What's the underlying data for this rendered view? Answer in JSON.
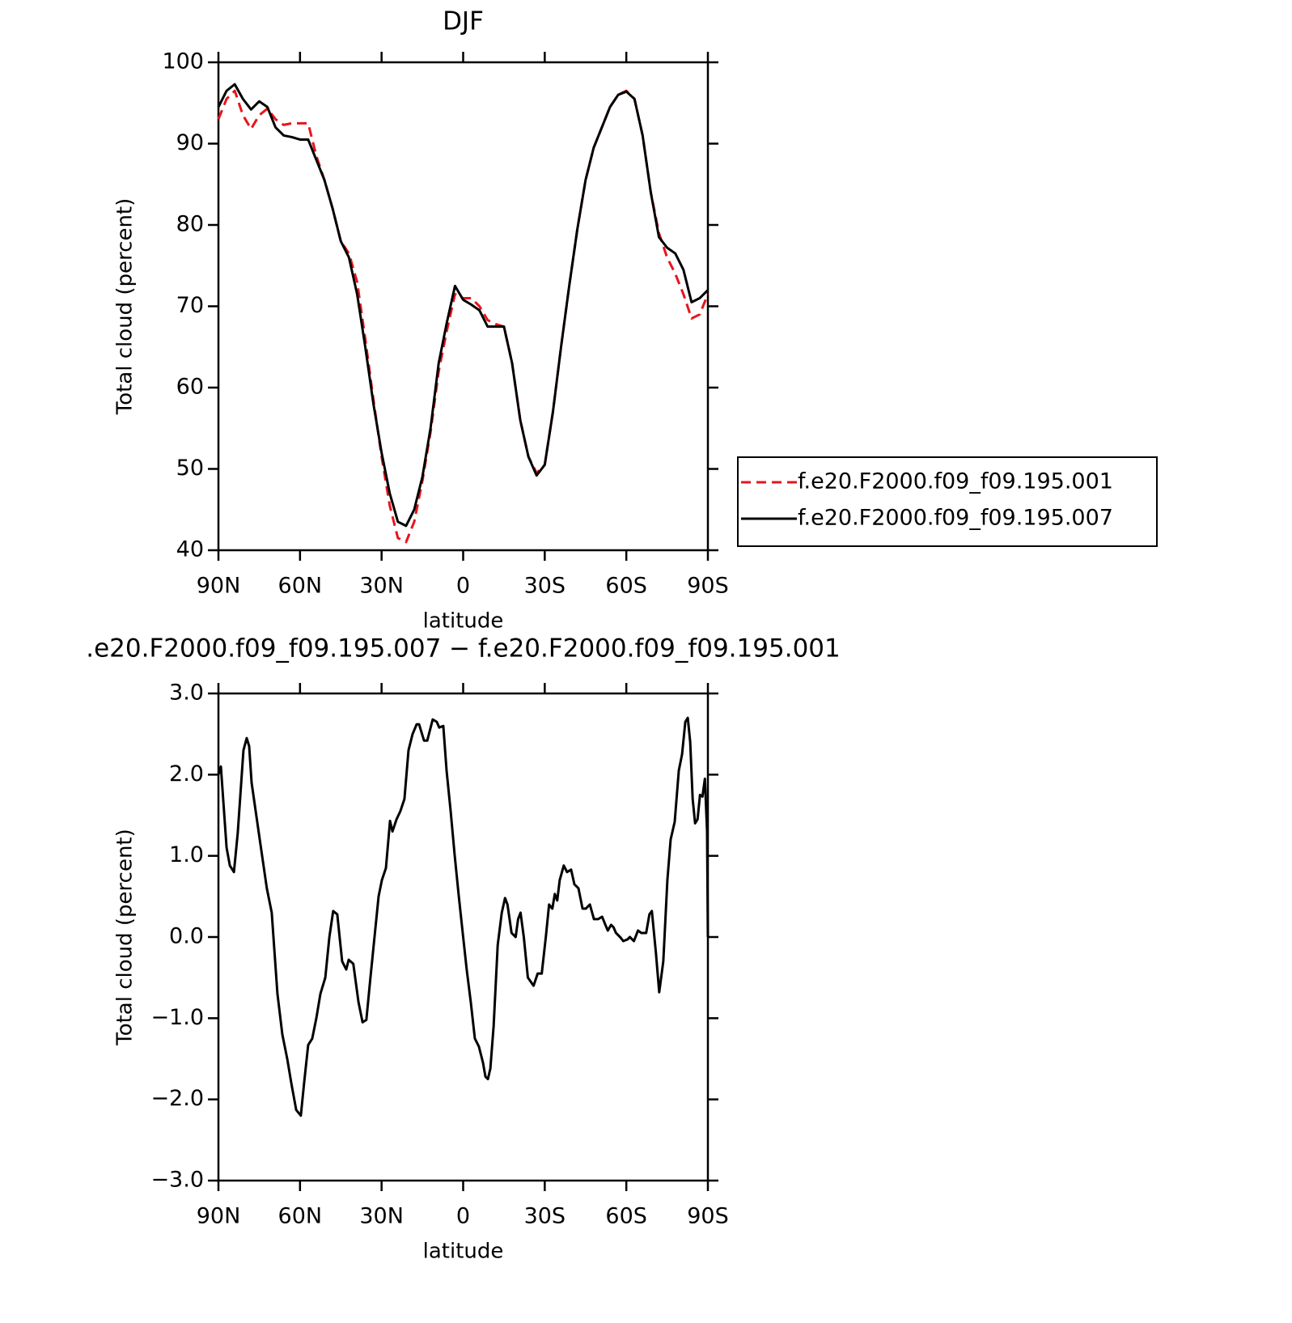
{
  "chart_data": [
    {
      "type": "line",
      "title": "DJF",
      "x_label": "latitude",
      "y_label": "Total cloud (percent)",
      "x": [
        90,
        87,
        84,
        81,
        78,
        75,
        72,
        69,
        66,
        63,
        60,
        57,
        54,
        51,
        48,
        45,
        42,
        39,
        36,
        33,
        30,
        27,
        24,
        21,
        18,
        15,
        12,
        9,
        6,
        3,
        0,
        -3,
        -6,
        -9,
        -12,
        -15,
        -18,
        -21,
        -24,
        -27,
        -30,
        -33,
        -36,
        -39,
        -42,
        -45,
        -48,
        -51,
        -54,
        -57,
        -60,
        -63,
        -66,
        -69,
        -72,
        -75,
        -78,
        -81,
        -84,
        -87,
        -90
      ],
      "series": [
        {
          "name": "f.e20.F2000.f09_f09.195.001",
          "color": "#e8141b",
          "dashed": true,
          "values": [
            93,
            95.5,
            96.5,
            93.5,
            91.8,
            93.5,
            94.3,
            93,
            92.3,
            92.5,
            92.5,
            92.5,
            88.5,
            85.5,
            82,
            78,
            76.5,
            73,
            66,
            58.5,
            51.5,
            45.5,
            41.5,
            41,
            43.5,
            48.5,
            54.5,
            62,
            67,
            71.5,
            71,
            71,
            70,
            68.3,
            67.8,
            67.5,
            63,
            56,
            51.5,
            49.5,
            50.5,
            57,
            65,
            72.5,
            79.5,
            85.5,
            89.5,
            92,
            94.5,
            96,
            96.5,
            95.5,
            91,
            84,
            79,
            76,
            74,
            71.5,
            68.5,
            69,
            71.5
          ]
        },
        {
          "name": "f.e20.F2000.f09_f09.195.007",
          "color": "#000000",
          "dashed": false,
          "values": [
            94.5,
            96.5,
            97.3,
            95.5,
            94.2,
            95.2,
            94.5,
            92,
            91,
            90.8,
            90.5,
            90.5,
            88,
            85.5,
            82,
            78,
            76,
            71.5,
            65,
            58,
            52,
            47,
            43.5,
            43,
            45,
            49,
            55,
            63,
            68,
            72.5,
            70.8,
            70.2,
            69.5,
            67.5,
            67.5,
            67.5,
            63,
            56,
            51.5,
            49.2,
            50.5,
            57,
            65,
            72.5,
            79.5,
            85.5,
            89.5,
            92,
            94.5,
            96,
            96.4,
            95.5,
            91,
            84,
            78.5,
            77.2,
            76.5,
            74.5,
            70.5,
            71,
            72
          ]
        }
      ],
      "xlim": [
        90,
        -90
      ],
      "xticks": [
        {
          "value": 90,
          "label": "90N"
        },
        {
          "value": 60,
          "label": "60N"
        },
        {
          "value": 30,
          "label": "30N"
        },
        0,
        {
          "value": -30,
          "label": "30S"
        },
        {
          "value": -60,
          "label": "60S"
        },
        {
          "value": -90,
          "label": "90S"
        }
      ],
      "ylim": [
        40,
        100
      ],
      "yticks": [
        40,
        50,
        60,
        70,
        80,
        90,
        100
      ],
      "legend": "right"
    },
    {
      "type": "line",
      "title": ".e20.F2000.f09_f09.195.007 − f.e20.F2000.f09_f09.195.001",
      "x_label": "latitude",
      "y_label": "Total cloud (percent)",
      "x": [
        90,
        89.1,
        87,
        85.8,
        84.3,
        82.9,
        80.8,
        79.6,
        78.7,
        77.8,
        76.3,
        74.8,
        72.2,
        70.4,
        68.3,
        66.5,
        64.7,
        63.2,
        61.4,
        59.7,
        58.5,
        57,
        55.5,
        54,
        52.5,
        50.7,
        49.2,
        47.8,
        46.3,
        44.5,
        43,
        42.1,
        40.4,
        38.5,
        37,
        35.6,
        34.1,
        32.6,
        31.1,
        29.9,
        28.4,
        26.9,
        26,
        24.5,
        23.1,
        21.6,
        20.1,
        18.6,
        17.1,
        16.2,
        14.4,
        13.2,
        11.2,
        9.7,
        8.8,
        7.3,
        6.1,
        4.6,
        3.1,
        1.6,
        0,
        -1.3,
        -2.8,
        -4.3,
        -5.8,
        -7.3,
        -8.2,
        -9.1,
        -10,
        -11.2,
        -12.7,
        -14.2,
        -15.4,
        -16.3,
        -17.8,
        -19.3,
        -20.2,
        -21.1,
        -22.3,
        -23.8,
        -25.9,
        -27.4,
        -28.9,
        -30.4,
        -31.6,
        -32.8,
        -33.7,
        -34.6,
        -35.5,
        -37,
        -38.2,
        -39.7,
        -40.9,
        -42.4,
        -43.9,
        -45.1,
        -46.6,
        -48.1,
        -49.6,
        -51.1,
        -52.3,
        -53.2,
        -54.4,
        -55.3,
        -56.2,
        -57.7,
        -58.9,
        -60.4,
        -61.3,
        -62.8,
        -64.3,
        -65.5,
        -67.3,
        -68.5,
        -69.4,
        -70.9,
        -72.1,
        -73.6,
        -75.1,
        -76.3,
        -77.8,
        -79.3,
        -80.5,
        -81.7,
        -82.6,
        -83.5,
        -84.4,
        -85.3,
        -86.2,
        -87.1,
        -88,
        -88.9,
        -89.7,
        -90
      ],
      "series": [
        {
          "color": "#000000",
          "dashed": false,
          "values": [
            2.0,
            2.1,
            1.1,
            0.88,
            0.8,
            1.28,
            2.3,
            2.45,
            2.35,
            1.9,
            1.55,
            1.2,
            0.6,
            0.3,
            -0.7,
            -1.2,
            -1.5,
            -1.8,
            -2.13,
            -2.2,
            -1.8,
            -1.33,
            -1.25,
            -1.0,
            -0.7,
            -0.5,
            0.0,
            0.32,
            0.28,
            -0.3,
            -0.4,
            -0.28,
            -0.33,
            -0.8,
            -1.05,
            -1.02,
            -0.5,
            0.0,
            0.5,
            0.7,
            0.85,
            1.43,
            1.3,
            1.45,
            1.55,
            1.7,
            2.3,
            2.5,
            2.62,
            2.62,
            2.42,
            2.42,
            2.68,
            2.65,
            2.58,
            2.6,
            2.05,
            1.55,
            1.0,
            0.5,
            0.0,
            -0.4,
            -0.8,
            -1.25,
            -1.35,
            -1.55,
            -1.72,
            -1.75,
            -1.62,
            -1.1,
            -0.1,
            0.3,
            0.48,
            0.4,
            0.05,
            0.0,
            0.22,
            0.3,
            0.0,
            -0.5,
            -0.6,
            -0.45,
            -0.45,
            0.0,
            0.4,
            0.35,
            0.53,
            0.45,
            0.7,
            0.88,
            0.8,
            0.83,
            0.65,
            0.6,
            0.35,
            0.35,
            0.4,
            0.22,
            0.22,
            0.25,
            0.15,
            0.08,
            0.15,
            0.12,
            0.05,
            0.0,
            -0.05,
            -0.03,
            0.0,
            -0.05,
            0.08,
            0.05,
            0.05,
            0.28,
            0.32,
            -0.2,
            -0.68,
            -0.3,
            0.7,
            1.2,
            1.42,
            2.05,
            2.25,
            2.65,
            2.7,
            2.4,
            1.7,
            1.4,
            1.45,
            1.75,
            1.73,
            1.95,
            1.3,
            0.0
          ]
        }
      ],
      "xlim": [
        90,
        -90
      ],
      "xticks": [
        {
          "value": 90,
          "label": "90N"
        },
        {
          "value": 60,
          "label": "60N"
        },
        {
          "value": 30,
          "label": "30N"
        },
        0,
        {
          "value": -30,
          "label": "30S"
        },
        {
          "value": -60,
          "label": "60S"
        },
        {
          "value": -90,
          "label": "90S"
        }
      ],
      "ylim": [
        -3,
        3
      ],
      "yticks": [
        {
          "value": 3,
          "label": "3.0"
        },
        {
          "value": 2,
          "label": "2.0"
        },
        {
          "value": 1,
          "label": "1.0"
        },
        {
          "value": 0,
          "label": "0.0"
        },
        {
          "value": -1,
          "label": "−1.0"
        },
        {
          "value": -2,
          "label": "−2.0"
        },
        {
          "value": -3,
          "label": "−3.0"
        }
      ]
    }
  ]
}
